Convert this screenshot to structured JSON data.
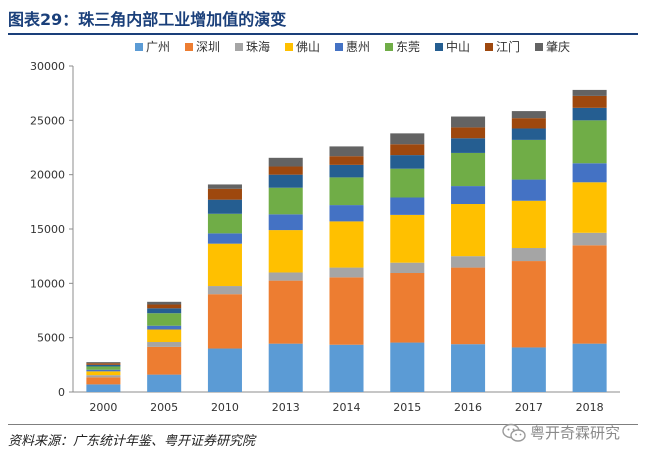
{
  "header": {
    "title": "图表29：珠三角内部工业增加值的演变"
  },
  "footer": {
    "source": "资料来源：广东统计年鉴、粤开证券研究院",
    "watermark": "粤开奇霖研究"
  },
  "colors": {
    "title": "#1a3f7a",
    "series": [
      "#5b9bd5",
      "#ed7d31",
      "#a5a5a5",
      "#ffc000",
      "#4472c4",
      "#70ad47",
      "#255e91",
      "#9e480e",
      "#636363"
    ]
  },
  "chart_data": {
    "type": "bar",
    "stacked": true,
    "title": "",
    "xlabel": "",
    "ylabel": "",
    "ylim": [
      0,
      30000
    ],
    "yticks": [
      0,
      5000,
      10000,
      15000,
      20000,
      25000,
      30000
    ],
    "legend_position": "top",
    "grid": false,
    "categories": [
      "2000",
      "2005",
      "2010",
      "2013",
      "2014",
      "2015",
      "2016",
      "2017",
      "2018"
    ],
    "series": [
      {
        "name": "广州",
        "values": [
          700,
          1600,
          4000,
          4450,
          4350,
          4550,
          4400,
          4100,
          4450
        ]
      },
      {
        "name": "深圳",
        "values": [
          650,
          2550,
          5000,
          5800,
          6200,
          6400,
          7050,
          7950,
          9050
        ]
      },
      {
        "name": "珠海",
        "values": [
          200,
          450,
          750,
          750,
          900,
          950,
          1050,
          1200,
          1150
        ]
      },
      {
        "name": "佛山",
        "values": [
          350,
          1150,
          3900,
          3900,
          4250,
          4400,
          4800,
          4350,
          4650
        ]
      },
      {
        "name": "惠州",
        "values": [
          150,
          350,
          950,
          1450,
          1500,
          1600,
          1650,
          1950,
          1750
        ]
      },
      {
        "name": "东莞",
        "values": [
          300,
          1150,
          1800,
          2450,
          2550,
          2650,
          3050,
          3650,
          3950
        ]
      },
      {
        "name": "中山",
        "values": [
          150,
          450,
          1300,
          1200,
          1150,
          1250,
          1350,
          1050,
          1150
        ]
      },
      {
        "name": "江门",
        "values": [
          150,
          350,
          1000,
          750,
          800,
          1000,
          1000,
          950,
          1100
        ]
      },
      {
        "name": "肇庆",
        "values": [
          100,
          250,
          400,
          800,
          900,
          1000,
          1000,
          650,
          550
        ]
      }
    ]
  }
}
